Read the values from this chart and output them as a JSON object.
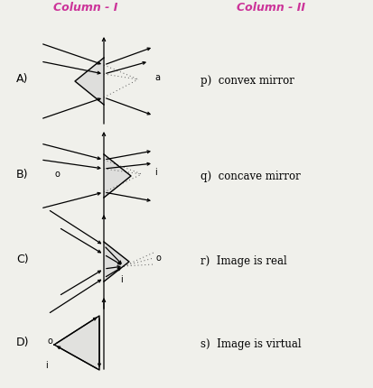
{
  "title_col1": "Column - I",
  "title_col2": "Column - II",
  "title_col1_color": "#cc3399",
  "title_col2_color": "#cc3399",
  "background_color": "#f0f0eb",
  "labels_right": [
    "p)  convex mirror",
    "q)  concave mirror",
    "r)  Image is real",
    "s)  Image is virtual"
  ],
  "row_labels": [
    "A)",
    "B)",
    "C)",
    "D)"
  ],
  "figsize": [
    4.14,
    4.3
  ],
  "dpi": 100
}
